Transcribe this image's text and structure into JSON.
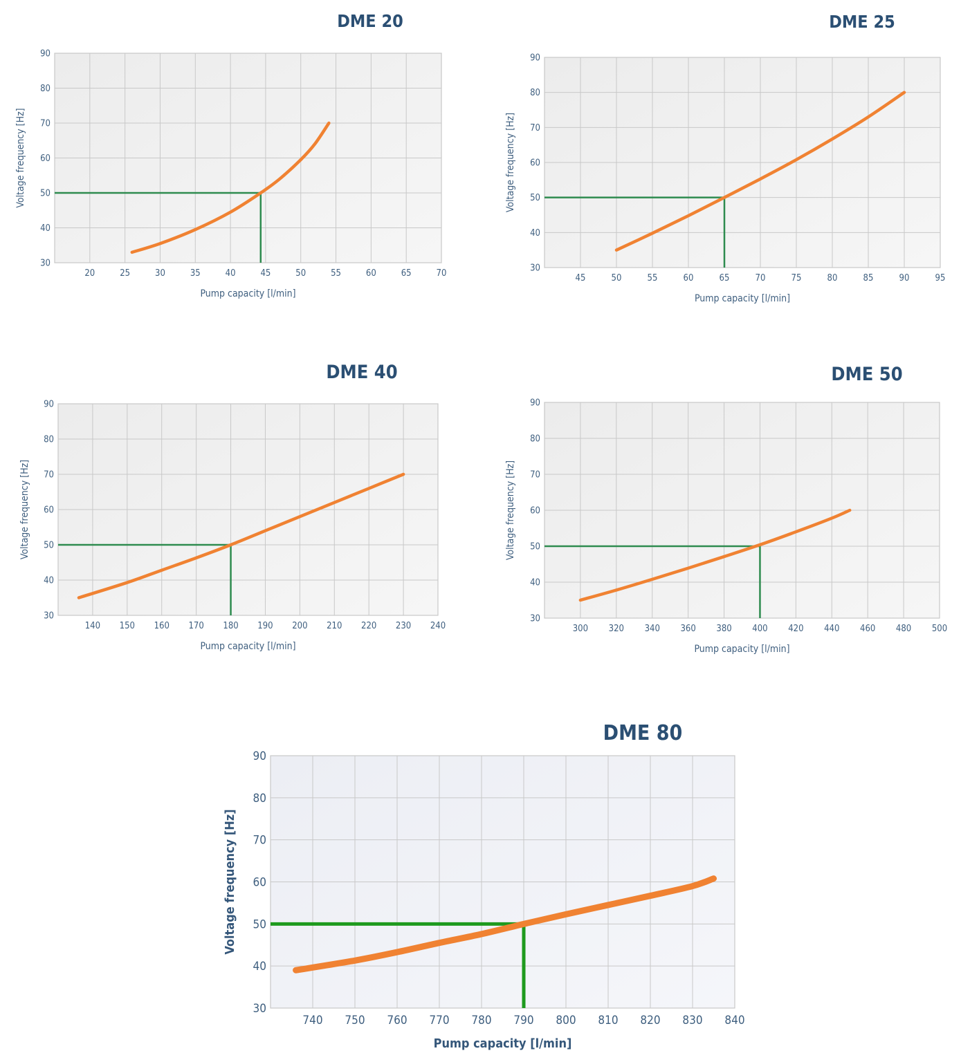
{
  "colors": {
    "title": "#2b4f73",
    "tick_text": "#3f5f7f",
    "grid": "#c8c8c8",
    "plot_bg": "#f0f0f0",
    "curve": "#f08232",
    "guide": "#2e8b4f",
    "guide_bold": "#1e9a1e"
  },
  "chart_data": [
    {
      "type": "line",
      "title": "DME 20",
      "xlabel": "Pump capacity [l/min]",
      "ylabel": "Voltage frequency [Hz]",
      "xlim": [
        15,
        70
      ],
      "ylim": [
        30,
        90
      ],
      "x_ticks": [
        20,
        25,
        30,
        35,
        40,
        45,
        50,
        55,
        60,
        65,
        70
      ],
      "y_ticks": [
        30,
        40,
        50,
        60,
        70,
        80,
        90
      ],
      "grid": true,
      "series": [
        {
          "x": [
            26,
            30,
            35,
            40,
            44.3,
            47,
            50,
            52,
            54
          ],
          "y": [
            33,
            35.5,
            39.5,
            44.5,
            50,
            54,
            59.5,
            64,
            70
          ]
        }
      ],
      "reference": {
        "x": 44.3,
        "y": 50
      }
    },
    {
      "type": "line",
      "title": "DME 25",
      "xlabel": "Pump capacity [l/min]",
      "ylabel": "Voltage frequency [Hz]",
      "xlim": [
        40,
        95
      ],
      "ylim": [
        30,
        90
      ],
      "x_ticks": [
        45,
        50,
        55,
        60,
        65,
        70,
        75,
        80,
        85,
        90,
        95
      ],
      "y_ticks": [
        30,
        40,
        50,
        60,
        70,
        80,
        90
      ],
      "grid": true,
      "series": [
        {
          "x": [
            50,
            55,
            60,
            65,
            70,
            75,
            80,
            85,
            90
          ],
          "y": [
            35,
            39.8,
            44.8,
            50,
            55.3,
            60.8,
            66.7,
            73,
            80
          ]
        }
      ],
      "reference": {
        "x": 65,
        "y": 50
      }
    },
    {
      "type": "line",
      "title": "DME 40",
      "xlabel": "Pump capacity [l/min]",
      "ylabel": "Voltage frequency [Hz]",
      "xlim": [
        130,
        240
      ],
      "ylim": [
        30,
        90
      ],
      "x_ticks": [
        140,
        150,
        160,
        170,
        180,
        190,
        200,
        210,
        220,
        230,
        240
      ],
      "y_ticks": [
        30,
        40,
        50,
        60,
        70,
        80,
        90
      ],
      "grid": true,
      "series": [
        {
          "x": [
            136,
            150,
            160,
            170,
            180,
            190,
            200,
            210,
            220,
            230
          ],
          "y": [
            35,
            39.3,
            42.8,
            46.3,
            50,
            54,
            58,
            62,
            66,
            70
          ]
        }
      ],
      "reference": {
        "x": 180,
        "y": 50
      }
    },
    {
      "type": "line",
      "title": "DME 50",
      "xlabel": "Pump capacity [l/min]",
      "ylabel": "Voltage frequency [Hz]",
      "xlim": [
        280,
        500
      ],
      "ylim": [
        30,
        90
      ],
      "x_ticks": [
        300,
        320,
        340,
        360,
        380,
        400,
        420,
        440,
        460,
        480,
        500
      ],
      "y_ticks": [
        30,
        40,
        50,
        60,
        70,
        80,
        90
      ],
      "grid": true,
      "series": [
        {
          "x": [
            300,
            320,
            340,
            360,
            380,
            400,
            420,
            440,
            450
          ],
          "y": [
            35,
            37.8,
            40.8,
            43.9,
            47.1,
            50.4,
            54,
            57.8,
            60
          ]
        }
      ],
      "reference": {
        "x": 400,
        "y": 50
      }
    },
    {
      "type": "line",
      "title": "DME 80",
      "xlabel": "Pump capacity [l/min]",
      "ylabel": "Voltage frequency [Hz]",
      "xlim": [
        730,
        840
      ],
      "ylim": [
        30,
        90
      ],
      "x_ticks": [
        740,
        750,
        760,
        770,
        780,
        790,
        800,
        810,
        820,
        830,
        840
      ],
      "y_ticks": [
        30,
        40,
        50,
        60,
        70,
        80,
        90
      ],
      "grid": true,
      "series": [
        {
          "x": [
            736,
            750,
            760,
            770,
            780,
            790,
            800,
            810,
            820,
            830,
            835
          ],
          "y": [
            39,
            41.3,
            43.3,
            45.5,
            47.6,
            50,
            52.3,
            54.5,
            56.7,
            59,
            60.8
          ]
        }
      ],
      "reference": {
        "x": 790,
        "y": 50
      }
    }
  ]
}
